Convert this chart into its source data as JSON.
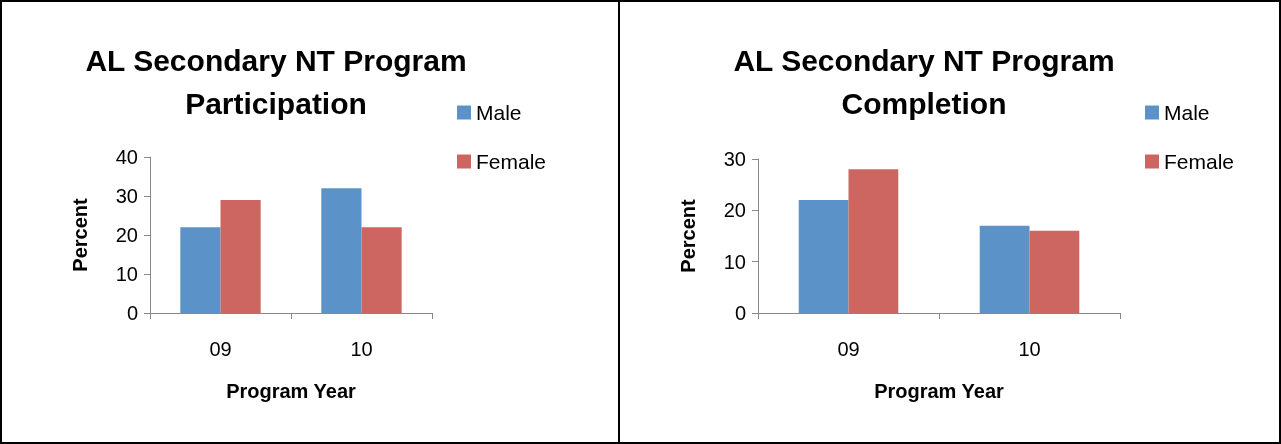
{
  "chart_data": [
    {
      "type": "bar",
      "title": "AL Secondary NT Program Participation",
      "xlabel": "Program Year",
      "ylabel": "Percent",
      "categories": [
        "09",
        "10"
      ],
      "series": [
        {
          "name": "Male",
          "color": "#5b93c8",
          "values": [
            22,
            32
          ]
        },
        {
          "name": "Female",
          "color": "#cd6660",
          "values": [
            29,
            22
          ]
        }
      ],
      "ylim": [
        0,
        40
      ],
      "yticks": [
        0,
        10,
        20,
        30,
        40
      ],
      "legend": "right"
    },
    {
      "type": "bar",
      "title": "AL Secondary NT Program Completion",
      "xlabel": "Program Year",
      "ylabel": "Percent",
      "categories": [
        "09",
        "10"
      ],
      "series": [
        {
          "name": "Male",
          "color": "#5b93c8",
          "values": [
            22,
            17
          ]
        },
        {
          "name": "Female",
          "color": "#cd6660",
          "values": [
            28,
            16
          ]
        }
      ],
      "ylim": [
        0,
        30
      ],
      "yticks": [
        0,
        10,
        20,
        30
      ],
      "legend": "right"
    }
  ]
}
